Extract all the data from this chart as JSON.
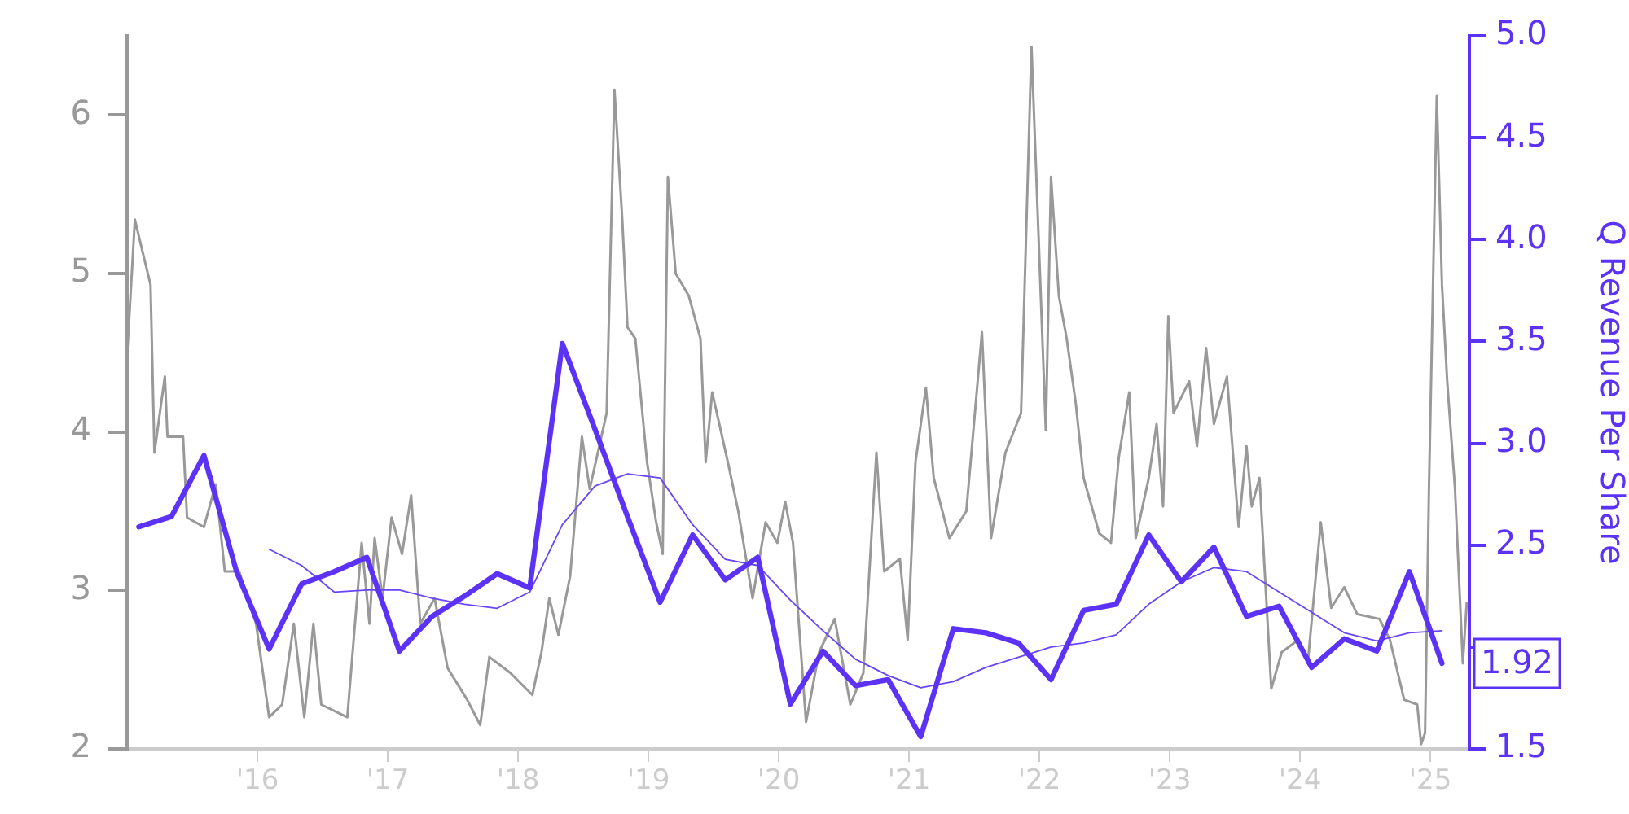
{
  "chart_data": {
    "type": "line",
    "y2label": "Q Revenue Per Share",
    "marker": "none",
    "line_style": "solid",
    "grid": false,
    "legend": false,
    "xlim": [
      2015.0,
      2025.3
    ],
    "xticks": [
      {
        "value": 2016,
        "label": "'16"
      },
      {
        "value": 2017,
        "label": "'17"
      },
      {
        "value": 2018,
        "label": "'18"
      },
      {
        "value": 2019,
        "label": "'19"
      },
      {
        "value": 2020,
        "label": "'20"
      },
      {
        "value": 2021,
        "label": "'21"
      },
      {
        "value": 2022,
        "label": "'22"
      },
      {
        "value": 2023,
        "label": "'23"
      },
      {
        "value": 2024,
        "label": "'24"
      },
      {
        "value": 2025,
        "label": "'25"
      }
    ],
    "ylim": [
      2,
      6.5
    ],
    "yticks": [
      2,
      3,
      4,
      5,
      6
    ],
    "y2lim": [
      1.5,
      5.0
    ],
    "y2ticks": [
      {
        "value": 1.5,
        "label": "1.5"
      },
      {
        "value": 2,
        "label": null
      },
      {
        "value": 2.5,
        "label": "2.5"
      },
      {
        "value": 3,
        "label": "3.0"
      },
      {
        "value": 3.5,
        "label": "3.5"
      },
      {
        "value": 4,
        "label": "4.0"
      },
      {
        "value": 4.5,
        "label": "4.5"
      },
      {
        "value": 5,
        "label": "5.0"
      }
    ],
    "annotations": [
      "1.92"
    ],
    "series": [
      {
        "axis": "y",
        "color": "#999999",
        "x": [
          2015.0,
          2015.06,
          2015.13,
          2015.18,
          2015.21,
          2015.29,
          2015.31,
          2015.43,
          2015.46,
          2015.59,
          2015.68,
          2015.75,
          2015.86,
          2015.99,
          2016.09,
          2016.19,
          2016.28,
          2016.36,
          2016.43,
          2016.49,
          2016.69,
          2016.8,
          2016.86,
          2016.9,
          2016.96,
          2017.03,
          2017.11,
          2017.18,
          2017.25,
          2017.36,
          2017.46,
          2017.61,
          2017.71,
          2017.78,
          2017.94,
          2018.11,
          2018.18,
          2018.24,
          2018.31,
          2018.4,
          2018.49,
          2018.55,
          2018.68,
          2018.74,
          2018.8,
          2018.84,
          2018.9,
          2018.99,
          2019.06,
          2019.11,
          2019.15,
          2019.21,
          2019.31,
          2019.4,
          2019.44,
          2019.49,
          2019.61,
          2019.69,
          2019.8,
          2019.9,
          2019.99,
          2020.05,
          2020.11,
          2020.21,
          2020.31,
          2020.43,
          2020.55,
          2020.65,
          2020.75,
          2020.81,
          2020.93,
          2020.99,
          2021.05,
          2021.13,
          2021.19,
          2021.31,
          2021.44,
          2021.56,
          2021.63,
          2021.74,
          2021.86,
          2021.94,
          2022.05,
          2022.09,
          2022.15,
          2022.21,
          2022.28,
          2022.34,
          2022.46,
          2022.55,
          2022.61,
          2022.69,
          2022.74,
          2022.84,
          2022.9,
          2022.95,
          2022.99,
          2023.03,
          2023.15,
          2023.21,
          2023.28,
          2023.34,
          2023.44,
          2023.53,
          2023.59,
          2023.63,
          2023.69,
          2023.78,
          2023.86,
          2023.99,
          2024.06,
          2024.16,
          2024.24,
          2024.34,
          2024.44,
          2024.61,
          2024.69,
          2024.8,
          2024.9,
          2024.93,
          2024.96,
          2024.99,
          2025.05,
          2025.09,
          2025.13,
          2025.19,
          2025.25,
          2025.28
        ],
        "values": [
          4.48,
          5.34,
          5.1,
          4.93,
          3.87,
          4.35,
          3.97,
          3.97,
          3.46,
          3.4,
          3.67,
          3.12,
          3.12,
          2.79,
          2.2,
          2.28,
          2.79,
          2.2,
          2.79,
          2.28,
          2.2,
          3.3,
          2.79,
          3.33,
          2.95,
          3.46,
          3.23,
          3.6,
          2.79,
          2.95,
          2.51,
          2.31,
          2.15,
          2.58,
          2.48,
          2.34,
          2.61,
          2.95,
          2.72,
          3.09,
          3.97,
          3.64,
          4.12,
          6.16,
          5.34,
          4.66,
          4.59,
          3.81,
          3.43,
          3.23,
          5.61,
          5.0,
          4.86,
          4.59,
          3.81,
          4.25,
          3.81,
          3.5,
          2.95,
          3.43,
          3.3,
          3.56,
          3.3,
          2.17,
          2.61,
          2.82,
          2.28,
          2.48,
          3.87,
          3.12,
          3.2,
          2.69,
          3.81,
          4.28,
          3.71,
          3.33,
          3.5,
          4.63,
          3.33,
          3.87,
          4.12,
          6.43,
          4.01,
          5.61,
          4.86,
          4.59,
          4.18,
          3.71,
          3.36,
          3.3,
          3.84,
          4.25,
          3.33,
          3.71,
          4.05,
          3.53,
          4.73,
          4.12,
          4.32,
          3.91,
          4.53,
          4.05,
          4.35,
          3.4,
          3.91,
          3.53,
          3.71,
          2.38,
          2.61,
          2.69,
          2.54,
          3.43,
          2.89,
          3.02,
          2.85,
          2.82,
          2.69,
          2.31,
          2.28,
          2.03,
          2.1,
          3.64,
          6.12,
          4.93,
          4.32,
          3.64,
          2.54,
          2.92
        ]
      },
      {
        "axis": "y2",
        "color": "#5c33f6",
        "x": [
          2015.09,
          2015.34,
          2015.59,
          2015.84,
          2016.09,
          2016.34,
          2016.59,
          2016.84,
          2017.09,
          2017.34,
          2017.59,
          2017.84,
          2018.09,
          2018.34,
          2018.59,
          2018.84,
          2019.09,
          2019.34,
          2019.59,
          2019.84,
          2020.09,
          2020.34,
          2020.59,
          2020.84,
          2021.09,
          2021.34,
          2021.59,
          2021.84,
          2022.09,
          2022.34,
          2022.59,
          2022.84,
          2023.09,
          2023.34,
          2023.59,
          2023.84,
          2024.09,
          2024.34,
          2024.59,
          2024.84,
          2025.09
        ],
        "values": [
          2.59,
          2.64,
          2.94,
          2.37,
          1.99,
          2.31,
          2.37,
          2.44,
          1.98,
          2.15,
          2.25,
          2.36,
          2.29,
          3.49,
          3.07,
          2.64,
          2.22,
          2.55,
          2.33,
          2.44,
          1.72,
          1.98,
          1.81,
          1.84,
          1.56,
          2.09,
          2.07,
          2.02,
          1.84,
          2.18,
          2.21,
          2.55,
          2.32,
          2.49,
          2.15,
          2.2,
          1.9,
          2.04,
          1.98,
          2.37,
          1.92
        ]
      },
      {
        "axis": "y2",
        "color": "#6a45f7",
        "x": [
          2016.09,
          2016.34,
          2016.59,
          2016.84,
          2017.09,
          2017.34,
          2017.59,
          2017.84,
          2018.09,
          2018.34,
          2018.59,
          2018.84,
          2019.09,
          2019.34,
          2019.59,
          2019.84,
          2020.09,
          2020.34,
          2020.59,
          2020.84,
          2021.09,
          2021.34,
          2021.59,
          2021.84,
          2022.09,
          2022.34,
          2022.59,
          2022.84,
          2023.09,
          2023.34,
          2023.59,
          2023.84,
          2024.09,
          2024.34,
          2024.59,
          2024.84,
          2025.09
        ],
        "values": [
          2.48,
          2.4,
          2.27,
          2.28,
          2.28,
          2.24,
          2.21,
          2.19,
          2.27,
          2.6,
          2.79,
          2.85,
          2.83,
          2.6,
          2.43,
          2.4,
          2.23,
          2.08,
          1.94,
          1.86,
          1.8,
          1.83,
          1.9,
          1.95,
          2.0,
          2.02,
          2.06,
          2.21,
          2.32,
          2.39,
          2.37,
          2.27,
          2.17,
          2.07,
          2.03,
          2.07,
          2.08
        ]
      }
    ]
  }
}
